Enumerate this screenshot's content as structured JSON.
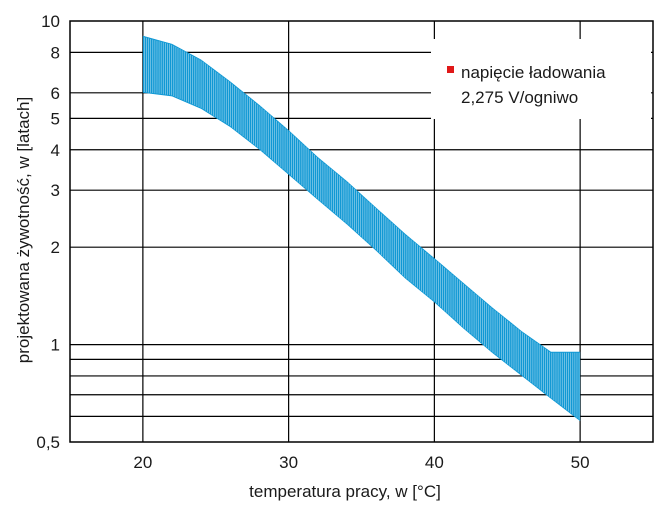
{
  "chart_data": {
    "type": "area",
    "xlabel": "temperatura pracy, w [°C]",
    "ylabel": "projektowana żywotność, w [latach]",
    "x_range": [
      15,
      55
    ],
    "y_range": [
      0.5,
      10
    ],
    "y_scale": "log",
    "grid": true,
    "x_ticks": [
      20,
      30,
      40,
      50
    ],
    "x_tick_labels": [
      "20",
      "30",
      "40",
      "50"
    ],
    "x_grid": [
      20,
      30,
      40,
      50
    ],
    "y_ticks": [
      0.5,
      1,
      2,
      3,
      4,
      5,
      6,
      8,
      10
    ],
    "y_tick_labels": [
      "0,5",
      "1",
      "2",
      "3",
      "4",
      "5",
      "6",
      "8",
      "10"
    ],
    "y_grid": [
      0.6,
      0.7,
      0.8,
      0.9,
      1,
      2,
      3,
      4,
      5,
      6,
      8
    ],
    "legend_placement": "top-right",
    "legend_lines": [
      "napięcie ładowania",
      "2,275 V/ogniwo"
    ],
    "series": [
      {
        "name": "napięcie ładowania 2,275 V/ogniwo",
        "color": "#1098d4",
        "x": [
          20,
          22,
          24,
          26,
          28,
          30,
          32,
          34,
          36,
          38,
          40,
          42,
          44,
          46,
          48,
          50
        ],
        "upper": [
          9.0,
          8.5,
          7.6,
          6.5,
          5.5,
          4.6,
          3.8,
          3.2,
          2.65,
          2.2,
          1.85,
          1.55,
          1.3,
          1.1,
          0.95,
          0.95
        ],
        "lower": [
          6.0,
          5.85,
          5.35,
          4.7,
          4.0,
          3.35,
          2.8,
          2.35,
          1.95,
          1.6,
          1.35,
          1.12,
          0.94,
          0.8,
          0.68,
          0.58
        ]
      }
    ]
  }
}
